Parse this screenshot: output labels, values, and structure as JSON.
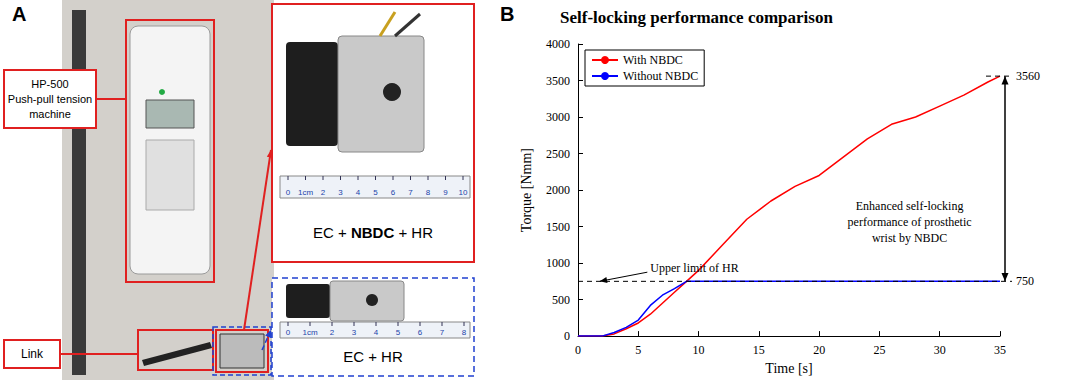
{
  "panel_labels": [
    "A",
    "B"
  ],
  "panel_a": {
    "callouts": [
      {
        "text": "HP-500\nPush-pull tension\nmachine"
      },
      {
        "text": "Link"
      }
    ],
    "insets": [
      {
        "label": "EC + NBDC + HR",
        "bold": "NBDC",
        "ruler": [
          "0",
          "1cm",
          "2",
          "3",
          "4",
          "5",
          "6",
          "7",
          "8",
          "9",
          "10"
        ]
      },
      {
        "label": "EC + HR",
        "ruler": [
          "0",
          "1cm",
          "2",
          "3",
          "4",
          "5",
          "6",
          "7",
          "8"
        ]
      }
    ]
  },
  "chart_data": {
    "type": "line",
    "title": "Self-locking performance comparison",
    "x_label": "Time [s]",
    "y_label": "Torque [Nmm]",
    "x": [
      0,
      2,
      3,
      4,
      5,
      6,
      7,
      8,
      9,
      10,
      12,
      14,
      16,
      18,
      20,
      22,
      24,
      26,
      28,
      30,
      32,
      34,
      35
    ],
    "series": [
      {
        "name": "With NBDC",
        "color": "#ff0000",
        "values": [
          0,
          0,
          30,
          100,
          180,
          300,
          450,
          600,
          750,
          900,
          1250,
          1600,
          1850,
          2050,
          2200,
          2450,
          2700,
          2900,
          3000,
          3150,
          3300,
          3480,
          3560
        ]
      },
      {
        "name": "Without NBDC",
        "color": "#0000ff",
        "values": [
          0,
          0,
          50,
          120,
          220,
          420,
          560,
          650,
          750,
          750,
          750,
          750,
          750,
          750,
          750,
          750,
          750,
          750,
          750,
          750,
          750,
          750,
          750
        ]
      }
    ],
    "xlim": [
      0,
      35
    ],
    "xticks": [
      0,
      5,
      10,
      15,
      20,
      25,
      30,
      35
    ],
    "ylim": [
      0,
      4000
    ],
    "yticks": [
      0,
      500,
      1000,
      1500,
      2000,
      2500,
      3000,
      3500,
      4000
    ],
    "grid": false,
    "legend": "upper left",
    "reference_lines": [
      {
        "value": 750,
        "label": "750"
      },
      {
        "value": 3560,
        "label": "3560"
      }
    ],
    "annotations": [
      {
        "text": "Upper limit of HR",
        "x": 6,
        "y": 930,
        "arrow_to": [
          1.8,
          750
        ]
      },
      {
        "text": "Enhanced self-locking\nperformance of prosthetic\nwrist by NBDC",
        "x": 27.5,
        "y": 1560
      }
    ]
  }
}
